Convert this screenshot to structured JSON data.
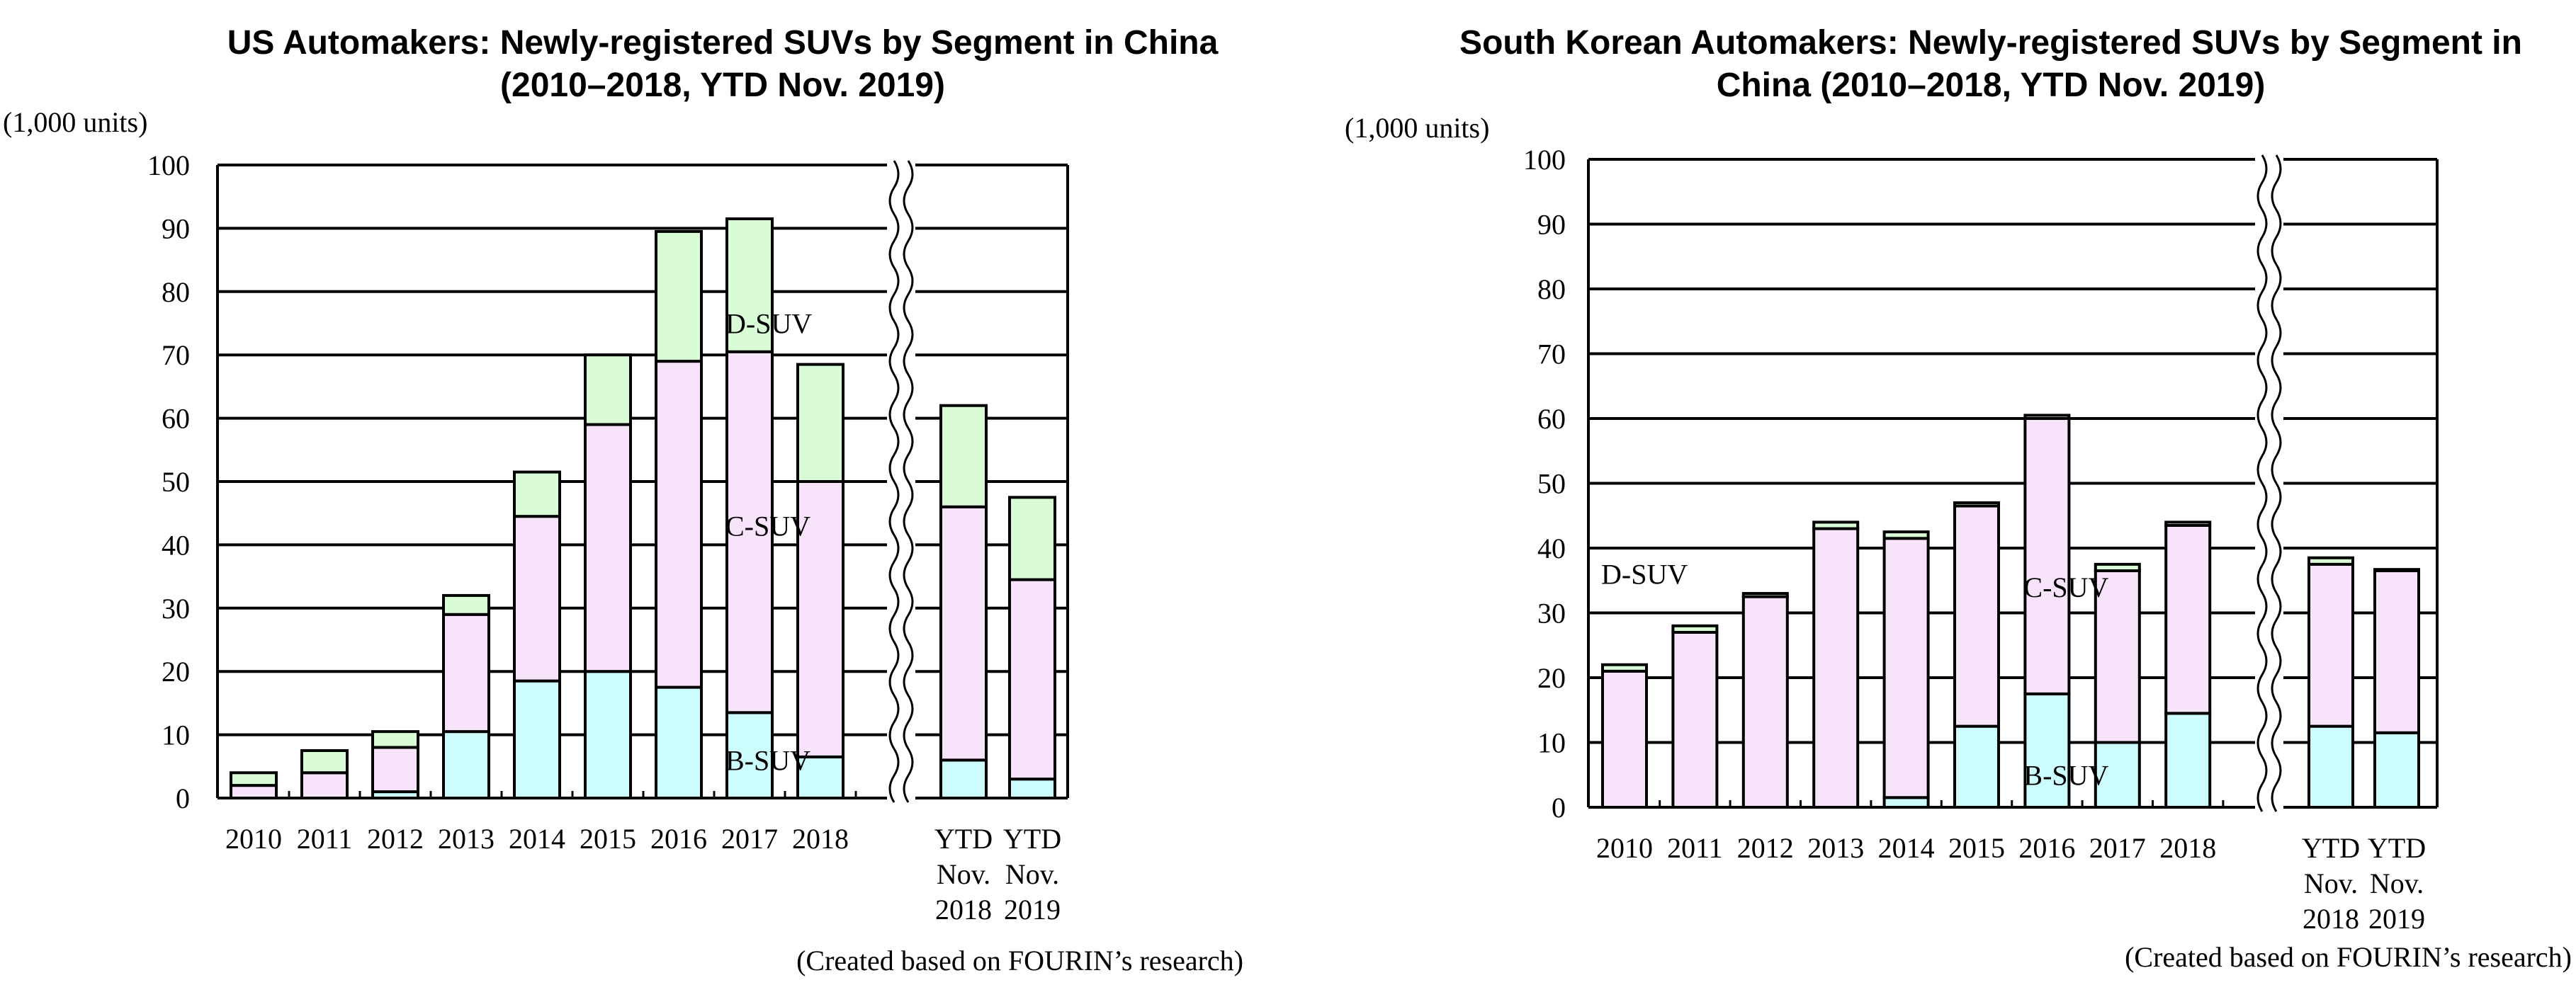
{
  "colors": {
    "B-SUV": "#ccfcfb",
    "C-SUV": "#f8e4fa",
    "D-SUV": "#d9fcd7",
    "gridline": "#000000",
    "bar_outline": "#000000"
  },
  "chart_data": [
    {
      "type": "bar",
      "stacked": true,
      "title_lines": [
        "US Automakers: Newly-registered SUVs by Segment in China",
        "(2010–2018, YTD Nov. 2019)"
      ],
      "unit_label": "(1,000 units)",
      "note": "(Created based on FOURIN’s research)",
      "ylim": [
        0,
        100
      ],
      "yticks": [
        "0",
        "10",
        "20",
        "30",
        "40",
        "50",
        "60",
        "70",
        "80",
        "90",
        "100"
      ],
      "grid": true,
      "axis_break_after": "2018",
      "categories": [
        "2010",
        "2011",
        "2012",
        "2013",
        "2014",
        "2015",
        "2016",
        "2017",
        "2018",
        "YTD Nov. 2018",
        "YTD Nov. 2019"
      ],
      "category_label_lines": [
        [
          "2010"
        ],
        [
          "2011"
        ],
        [
          "2012"
        ],
        [
          "2013"
        ],
        [
          "2014"
        ],
        [
          "2015"
        ],
        [
          "2016"
        ],
        [
          "2017"
        ],
        [
          "2018"
        ],
        [
          "YTD",
          "Nov.",
          "2018"
        ],
        [
          "YTD",
          "Nov.",
          "2019"
        ]
      ],
      "series": [
        {
          "name": "B-SUV",
          "values": [
            0,
            0,
            1,
            10.5,
            18.5,
            20,
            17.5,
            13.5,
            6.5,
            6,
            3
          ]
        },
        {
          "name": "C-SUV",
          "values": [
            2,
            4,
            7,
            18.5,
            26,
            39,
            51.5,
            57,
            43.5,
            40,
            31.5
          ]
        },
        {
          "name": "D-SUV",
          "values": [
            2,
            3.5,
            2.5,
            3,
            7,
            11,
            20.5,
            21,
            18.5,
            16,
            13
          ]
        }
      ],
      "segment_labels": [
        {
          "text": "D-SUV",
          "category": "2017",
          "y": 75
        },
        {
          "text": "C-SUV",
          "category": "2017",
          "y": 43
        },
        {
          "text": "B-SUV",
          "category": "2017",
          "y": 6
        }
      ]
    },
    {
      "type": "bar",
      "stacked": true,
      "title_lines": [
        "South Korean Automakers: Newly-registered SUVs by Segment in",
        "China (2010–2018, YTD Nov. 2019)"
      ],
      "unit_label": "(1,000 units)",
      "note": "(Created based on FOURIN’s research)",
      "ylim": [
        0,
        100
      ],
      "yticks": [
        "0",
        "10",
        "20",
        "30",
        "40",
        "50",
        "60",
        "70",
        "80",
        "90",
        "100"
      ],
      "grid": true,
      "axis_break_after": "2018",
      "categories": [
        "2010",
        "2011",
        "2012",
        "2013",
        "2014",
        "2015",
        "2016",
        "2017",
        "2018",
        "YTD Nov. 2018",
        "YTD Nov. 2019"
      ],
      "category_label_lines": [
        [
          "2010"
        ],
        [
          "2011"
        ],
        [
          "2012"
        ],
        [
          "2013"
        ],
        [
          "2014"
        ],
        [
          "2015"
        ],
        [
          "2016"
        ],
        [
          "2017"
        ],
        [
          "2018"
        ],
        [
          "YTD",
          "Nov.",
          "2018"
        ],
        [
          "YTD",
          "Nov.",
          "2019"
        ]
      ],
      "series": [
        {
          "name": "B-SUV",
          "values": [
            0,
            0,
            0,
            0,
            1.5,
            12.5,
            17.5,
            10,
            14.5,
            12.5,
            11.5
          ]
        },
        {
          "name": "C-SUV",
          "values": [
            21,
            27,
            32.5,
            43,
            40,
            34,
            42.5,
            26.5,
            29,
            25,
            25
          ]
        },
        {
          "name": "D-SUV",
          "values": [
            1,
            1,
            0.5,
            1,
            1,
            0.5,
            0.5,
            1,
            0.5,
            1,
            0.2
          ]
        }
      ],
      "segment_labels": [
        {
          "text": "D-SUV",
          "category": "2010",
          "y": 36
        },
        {
          "text": "C-SUV",
          "category": "2016",
          "y": 34
        },
        {
          "text": "B-SUV",
          "category": "2016",
          "y": 5
        }
      ]
    }
  ]
}
